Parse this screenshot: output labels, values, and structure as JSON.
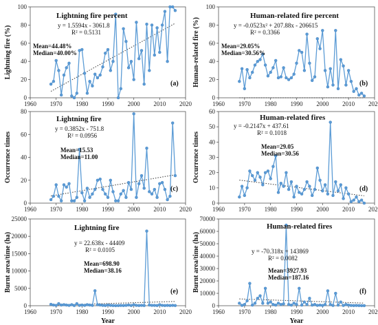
{
  "chart_data": [
    {
      "type": "line",
      "title": "Lightning fire percent",
      "ylabel": "Lightning fire (%)",
      "xlabel": "",
      "xlim": [
        1960,
        2020
      ],
      "ylim": [
        0,
        100
      ],
      "xticks": [
        "1960",
        "1970",
        "1980",
        "1990",
        "2000",
        "2010",
        "2020"
      ],
      "yticks": [
        "0",
        "20",
        "40",
        "60",
        "80",
        "100"
      ],
      "equation": "y = 1.5594x - 3061.8",
      "r2": "R² = 0.5131",
      "mean": "Mean=44.48%",
      "median": "Median=40.00%",
      "panel": "(a)",
      "trend": {
        "kind": "linear",
        "coef": [
          1.5594,
          -3061.8
        ]
      },
      "x": [
        1968,
        1969,
        1970,
        1971,
        1972,
        1973,
        1974,
        1975,
        1976,
        1977,
        1978,
        1979,
        1980,
        1981,
        1982,
        1983,
        1984,
        1985,
        1986,
        1987,
        1988,
        1989,
        1990,
        1991,
        1992,
        1993,
        1994,
        1995,
        1996,
        1997,
        1998,
        1999,
        2000,
        2001,
        2002,
        2003,
        2004,
        2005,
        2006,
        2007,
        2008,
        2009,
        2010,
        2011,
        2012,
        2013,
        2014,
        2015,
        2016
      ],
      "y": [
        15,
        18,
        41,
        30,
        3,
        25,
        33,
        38,
        2,
        0,
        5,
        52,
        53,
        27,
        5,
        18,
        13,
        26,
        22,
        25,
        34,
        49,
        53,
        30,
        40,
        92,
        0,
        10,
        76,
        62,
        33,
        40,
        20,
        83,
        43,
        52,
        15,
        81,
        30,
        80,
        47,
        77,
        50,
        80,
        95,
        40,
        100,
        100,
        96
      ]
    },
    {
      "type": "line",
      "title": "Human-related fire percent",
      "ylabel": "Human-related fire (%)",
      "xlabel": "",
      "xlim": [
        1960,
        2020
      ],
      "ylim": [
        0,
        100
      ],
      "xticks": [
        "1960",
        "1970",
        "1980",
        "1990",
        "2000",
        "2010",
        "2020"
      ],
      "yticks": [
        "0",
        "20",
        "40",
        "60",
        "80",
        "100"
      ],
      "equation": "y = -0.0523x² + 207.88x - 206615",
      "r2": "R² = 0.3366",
      "mean": "Mean=29.05%",
      "median": "Median=30.56%",
      "panel": "(b)",
      "trend": {
        "kind": "poly2",
        "coef": [
          -0.0523,
          207.88,
          -206615
        ]
      },
      "x": [
        1968,
        1969,
        1970,
        1971,
        1972,
        1973,
        1974,
        1975,
        1976,
        1977,
        1978,
        1979,
        1980,
        1981,
        1982,
        1983,
        1984,
        1985,
        1986,
        1987,
        1988,
        1989,
        1990,
        1991,
        1992,
        1993,
        1994,
        1995,
        1996,
        1997,
        1998,
        1999,
        2000,
        2001,
        2002,
        2003,
        2004,
        2005,
        2006,
        2007,
        2008,
        2009,
        2010,
        2011,
        2012,
        2013,
        2014,
        2015,
        2016
      ],
      "y": [
        18,
        32,
        10,
        31,
        22,
        28,
        36,
        40,
        42,
        48,
        36,
        24,
        28,
        33,
        41,
        22,
        23,
        33,
        22,
        20,
        22,
        26,
        38,
        52,
        50,
        30,
        70,
        38,
        19,
        23,
        65,
        54,
        74,
        30,
        12,
        32,
        14,
        74,
        10,
        42,
        35,
        14,
        30,
        18,
        7,
        10,
        3,
        5,
        2
      ]
    },
    {
      "type": "line",
      "title": "Lightning fire",
      "ylabel": "Occurrence times",
      "xlabel": "",
      "xlim": [
        1960,
        2020
      ],
      "ylim": [
        0,
        80
      ],
      "xticks": [
        "1960",
        "1970",
        "1980",
        "1990",
        "2000",
        "2010",
        "2020"
      ],
      "yticks": [
        "0",
        "20",
        "40",
        "60",
        "80"
      ],
      "equation": "y = 0.3852x - 751.8",
      "r2": "R² = 0.0956",
      "mean": "Mean=15.53",
      "median": "Median=11.00",
      "panel": "(c)",
      "trend": {
        "kind": "linear",
        "coef": [
          0.3852,
          -751.8
        ]
      },
      "x": [
        1968,
        1969,
        1970,
        1971,
        1972,
        1973,
        1974,
        1975,
        1976,
        1977,
        1978,
        1979,
        1980,
        1981,
        1982,
        1983,
        1984,
        1985,
        1986,
        1987,
        1988,
        1989,
        1990,
        1991,
        1992,
        1993,
        1994,
        1995,
        1996,
        1997,
        1998,
        1999,
        2000,
        2001,
        2002,
        2003,
        2004,
        2005,
        2006,
        2007,
        2008,
        2009,
        2010,
        2011,
        2012,
        2013,
        2014,
        2015,
        2016
      ],
      "y": [
        3,
        6,
        16,
        6,
        2,
        16,
        14,
        17,
        2,
        2,
        5,
        47,
        9,
        2,
        13,
        5,
        8,
        12,
        20,
        21,
        12,
        8,
        5,
        20,
        10,
        2,
        2,
        8,
        11,
        5,
        18,
        12,
        78,
        5,
        17,
        24,
        13,
        48,
        10,
        8,
        12,
        5,
        17,
        18,
        12,
        3,
        6,
        70,
        24
      ]
    },
    {
      "type": "line",
      "title": "Human-related fires",
      "ylabel": "Occurrence times",
      "xlabel": "",
      "xlim": [
        1960,
        2020
      ],
      "ylim": [
        0,
        60
      ],
      "xticks": [
        "1960",
        "1970",
        "1980",
        "1990",
        "2000",
        "2010",
        "2020"
      ],
      "yticks": [
        "0",
        "10",
        "20",
        "30",
        "40",
        "50",
        "60"
      ],
      "equation": "y = -0.2147x + 437.61",
      "r2": "R² = 0.1018",
      "mean": "Mean=29.05",
      "median": "Median=30.56",
      "panel": "(d)",
      "trend": {
        "kind": "linear",
        "coef": [
          -0.2147,
          437.61
        ]
      },
      "x": [
        1968,
        1969,
        1970,
        1971,
        1972,
        1973,
        1974,
        1975,
        1976,
        1977,
        1978,
        1979,
        1980,
        1981,
        1982,
        1983,
        1984,
        1985,
        1986,
        1987,
        1988,
        1989,
        1990,
        1991,
        1992,
        1993,
        1994,
        1995,
        1996,
        1997,
        1998,
        1999,
        2000,
        2001,
        2002,
        2003,
        2004,
        2005,
        2006,
        2007,
        2008,
        2009,
        2010,
        2011,
        2012,
        2013,
        2014,
        2015,
        2016
      ],
      "y": [
        4,
        11,
        5,
        10,
        21,
        18,
        15,
        20,
        17,
        12,
        20,
        21,
        16,
        24,
        31,
        7,
        13,
        11,
        20,
        9,
        14,
        4,
        11,
        7,
        6,
        9,
        14,
        11,
        5,
        9,
        23,
        15,
        8,
        12,
        6,
        53,
        5,
        14,
        8,
        12,
        3,
        10,
        6,
        1,
        2,
        4,
        1,
        2,
        0
      ]
    },
    {
      "type": "line",
      "title": "Lightning fire",
      "ylabel": "Burnt area/time (ha)",
      "xlabel": "Year",
      "xlim": [
        1960,
        2020
      ],
      "ylim": [
        0,
        25000
      ],
      "xticks": [
        "1960",
        "1970",
        "1980",
        "1990",
        "2000",
        "2010",
        "2020"
      ],
      "yticks": [
        "0",
        "5000",
        "10000",
        "15000",
        "20000",
        "25000"
      ],
      "equation": "y = 22.638x - 44409",
      "r2": "R² = 0.0105",
      "mean": "Mean=698.90",
      "median": "Median=38.16",
      "panel": "(e)",
      "trend": {
        "kind": "linear",
        "coef": [
          22.638,
          -44409
        ]
      },
      "x": [
        1968,
        1969,
        1970,
        1971,
        1972,
        1973,
        1974,
        1975,
        1976,
        1977,
        1978,
        1979,
        1980,
        1981,
        1982,
        1983,
        1984,
        1985,
        1986,
        1987,
        1988,
        1989,
        1990,
        1991,
        1992,
        1993,
        1994,
        1995,
        1996,
        1997,
        1998,
        1999,
        2000,
        2001,
        2002,
        2003,
        2004,
        2005,
        2006,
        2007,
        2008,
        2009,
        2010,
        2011,
        2012,
        2013,
        2014,
        2015,
        2016
      ],
      "y": [
        400,
        200,
        100,
        600,
        200,
        300,
        200,
        100,
        300,
        50,
        600,
        100,
        200,
        100,
        300,
        200,
        100,
        4300,
        300,
        200,
        100,
        50,
        200,
        100,
        50,
        20,
        30,
        80,
        50,
        100,
        200,
        50,
        300,
        100,
        50,
        100,
        50,
        21500,
        200,
        100,
        100,
        50,
        300,
        100,
        50,
        100,
        50,
        100,
        50
      ]
    },
    {
      "type": "line",
      "title": "Human-related fires",
      "ylabel": "Burnt area/time (ha)",
      "xlabel": "Year",
      "xlim": [
        1960,
        2020
      ],
      "ylim": [
        0,
        70000
      ],
      "xticks": [
        "1960",
        "1970",
        "1980",
        "1990",
        "2000",
        "2010",
        "2020"
      ],
      "yticks": [
        "0",
        "10000",
        "20000",
        "30000",
        "40000",
        "50000",
        "60000",
        "70000"
      ],
      "equation": "y = -70.318x + 143869",
      "r2": "R² = 0.0082",
      "mean": "Mean=3927.93",
      "median": "Median=187.16",
      "panel": "(f)",
      "trend": {
        "kind": "linear",
        "coef": [
          -70.318,
          143869
        ]
      },
      "x": [
        1968,
        1969,
        1970,
        1971,
        1972,
        1973,
        1974,
        1975,
        1976,
        1977,
        1978,
        1979,
        1980,
        1981,
        1982,
        1983,
        1984,
        1985,
        1986,
        1987,
        1988,
        1989,
        1990,
        1991,
        1992,
        1993,
        1994,
        1995,
        1996,
        1997,
        1998,
        1999,
        2000,
        2001,
        2002,
        2003,
        2004,
        2005,
        2006,
        2007,
        2008,
        2009,
        2010,
        2011,
        2012,
        2013,
        2014,
        2015,
        2016
      ],
      "y": [
        2000,
        300,
        1000,
        4000,
        18000,
        500,
        2000,
        6000,
        8000,
        2000,
        14000,
        2000,
        3000,
        1000,
        500,
        2000,
        1000,
        1500,
        65000,
        1000,
        500,
        2000,
        1000,
        14000,
        500,
        3000,
        1000,
        6000,
        500,
        1000,
        300,
        500,
        200,
        1000,
        12000,
        1000,
        200,
        10000,
        500,
        3000,
        200,
        1000,
        500,
        200,
        100,
        200,
        100,
        50,
        50
      ]
    }
  ]
}
